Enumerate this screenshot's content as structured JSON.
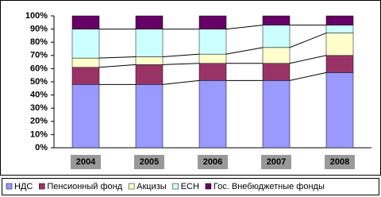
{
  "chart_data": {
    "type": "stacked_bar_100",
    "categories": [
      "2004",
      "2005",
      "2006",
      "2007",
      "2008"
    ],
    "series": [
      {
        "name": "НДС",
        "color": "#9999ff",
        "values": [
          48,
          48,
          51,
          51,
          57
        ]
      },
      {
        "name": "Пенсионный фонд",
        "color": "#993366",
        "values": [
          13,
          15,
          13,
          13,
          13
        ]
      },
      {
        "name": "Акцизы",
        "color": "#ffffcc",
        "values": [
          7,
          6,
          7,
          12,
          17
        ]
      },
      {
        "name": "ЕСН",
        "color": "#ccffff",
        "values": [
          22,
          21,
          19,
          17,
          6
        ]
      },
      {
        "name": "Гос. Внебюджетные фонды",
        "color": "#660066",
        "values": [
          10,
          10,
          10,
          7,
          7
        ]
      }
    ],
    "ylim": [
      0,
      100
    ],
    "yticks": [
      {
        "value": 0,
        "label": "0%"
      },
      {
        "value": 10,
        "label": "10%"
      },
      {
        "value": 20,
        "label": "20%"
      },
      {
        "value": 30,
        "label": "30%"
      },
      {
        "value": 40,
        "label": "40%"
      },
      {
        "value": 50,
        "label": "50%"
      },
      {
        "value": 60,
        "label": "60%"
      },
      {
        "value": 70,
        "label": "70%"
      },
      {
        "value": 80,
        "label": "80%"
      },
      {
        "value": 90,
        "label": "90%"
      },
      {
        "value": 100,
        "label": "100%"
      }
    ],
    "series_lines": true,
    "legend": "bottom"
  }
}
